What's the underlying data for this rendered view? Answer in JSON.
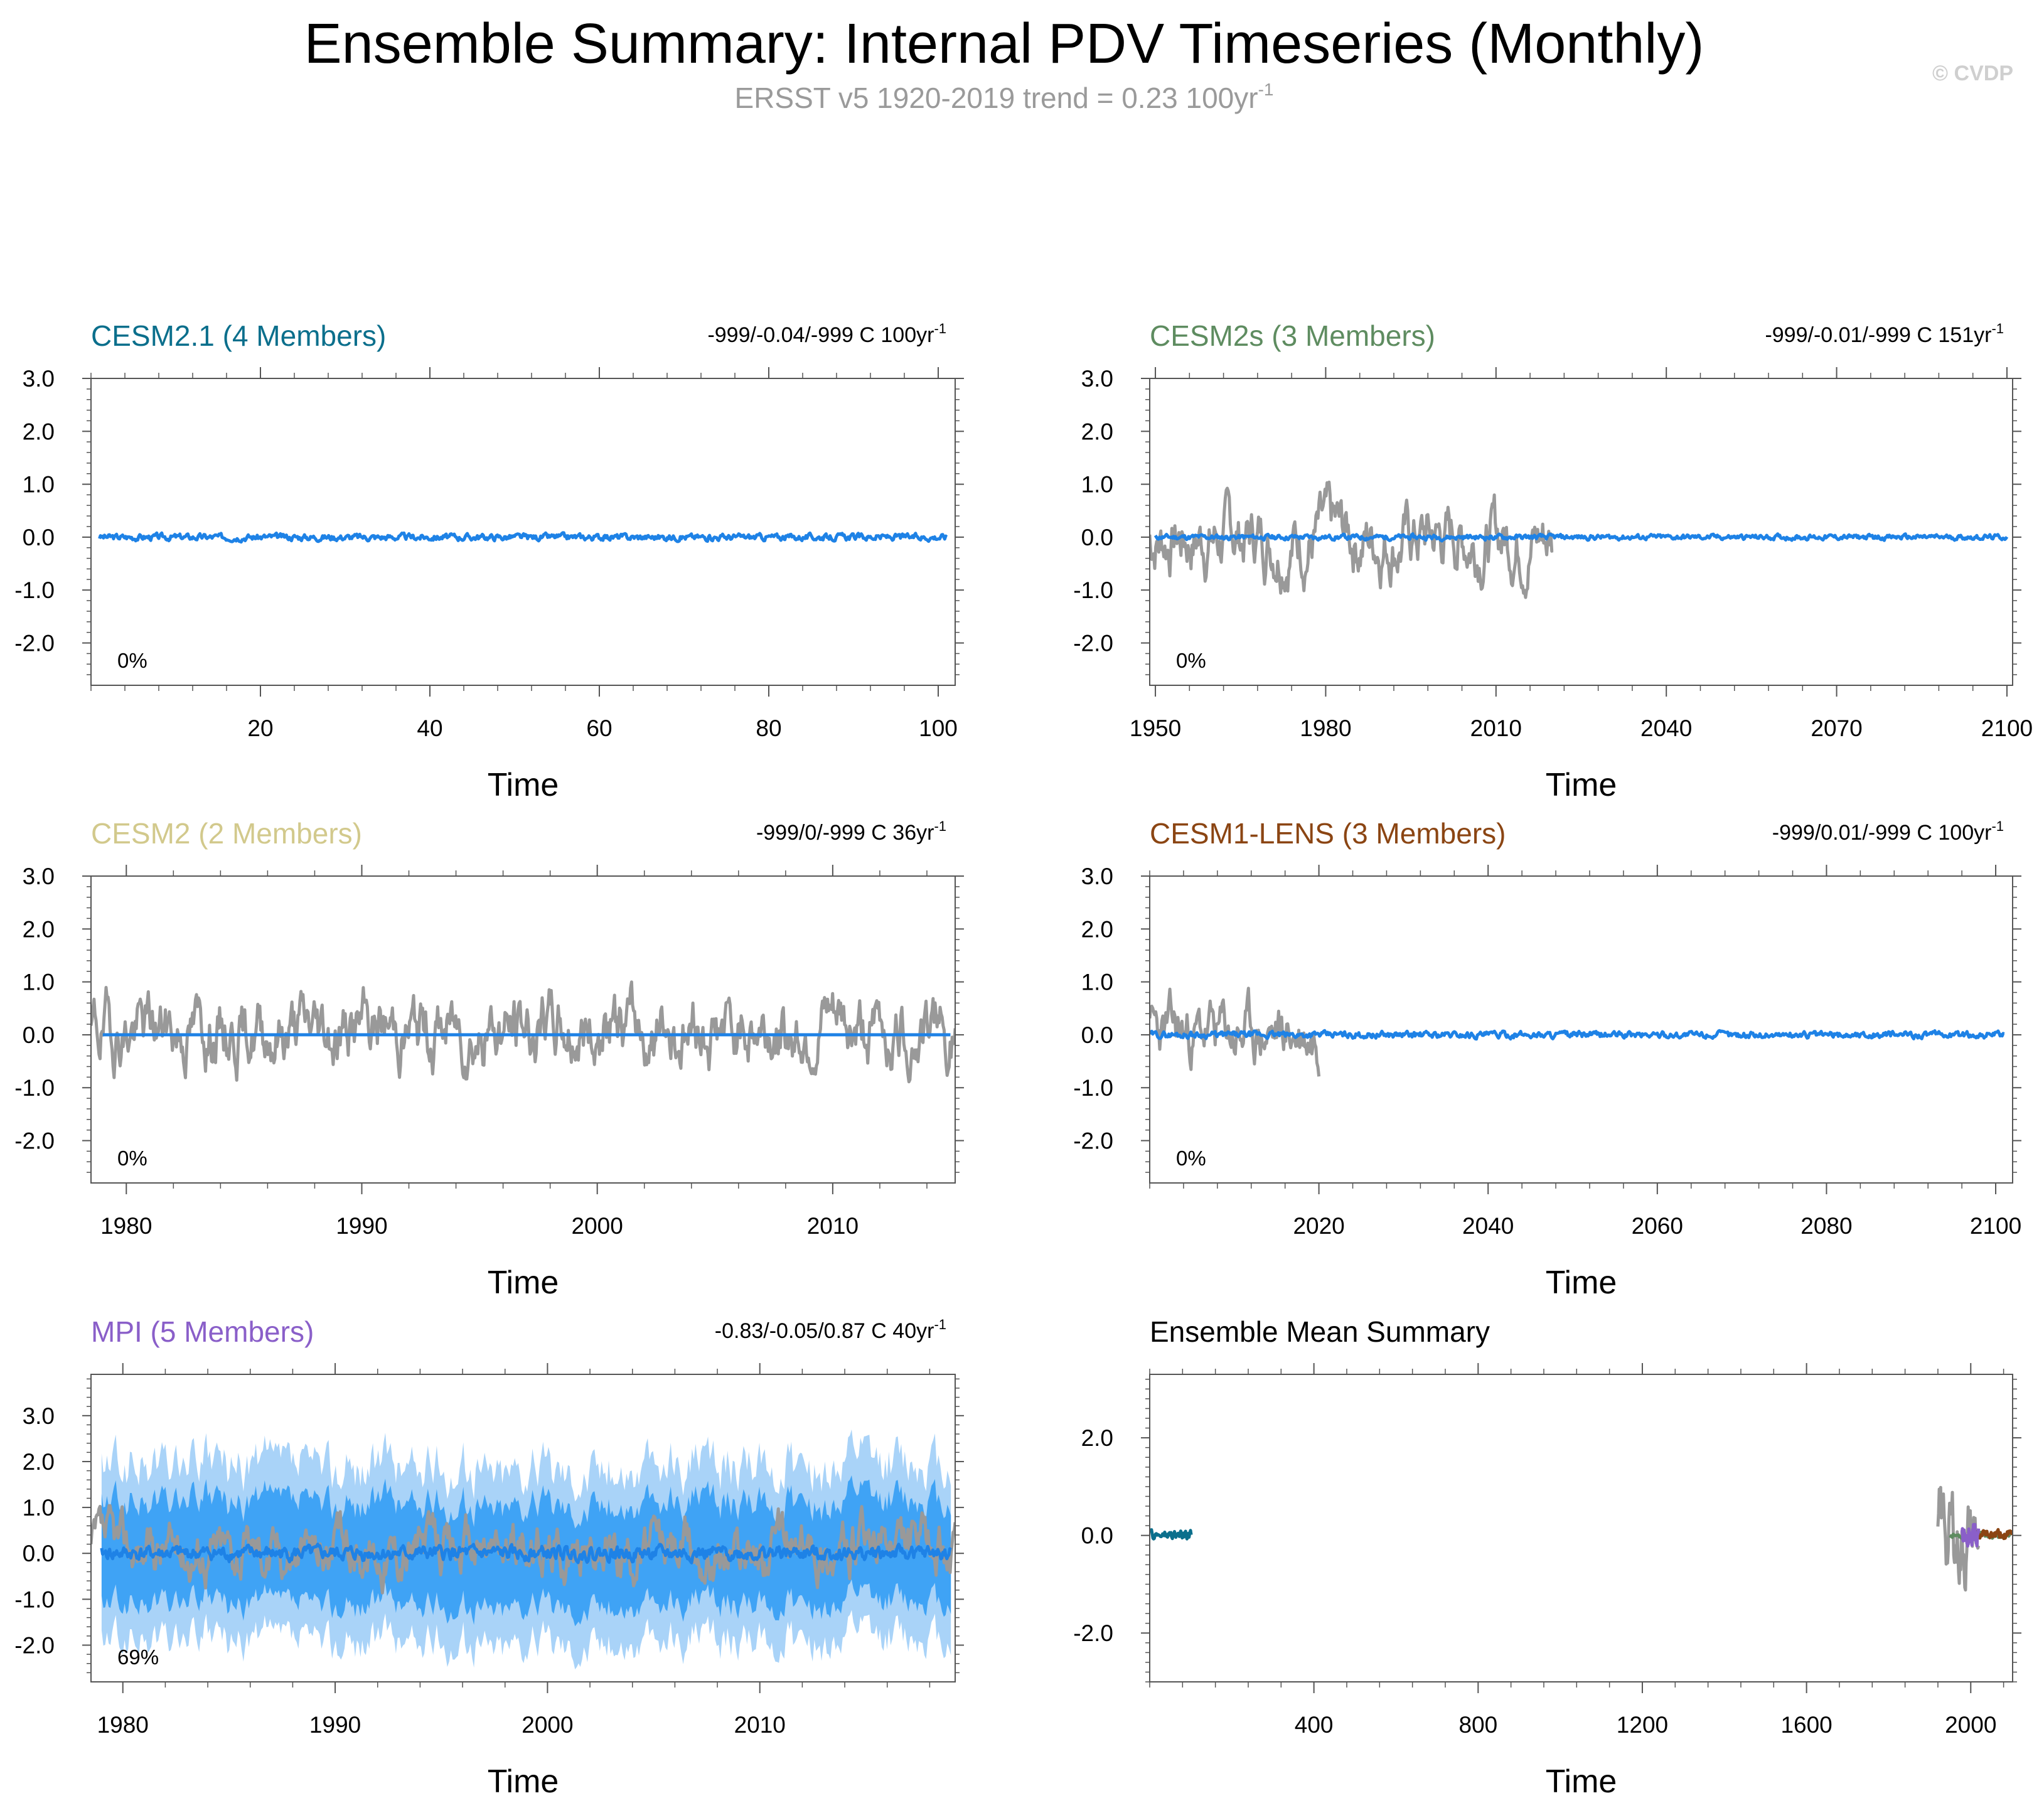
{
  "figure": {
    "title": "Ensemble Summary: Internal PDV Timeseries (Monthly)",
    "subtitle_main": "ERSST v5 1920-2019 trend = 0.23 100yr",
    "subtitle_sup": "-1",
    "credit": "© CVDP"
  },
  "colors": {
    "observed": "#999999",
    "ensemble_mean": "#1e82e6",
    "spread_inner": "#3fa3f5",
    "spread_outer": "#a9d3f8",
    "frame": "#555555"
  },
  "chart_data": [
    {
      "id": "cesm21",
      "type": "line",
      "title": "CESM2.1 (4 Members)",
      "title_color": "#0b6f8c",
      "stat": "-999/-0.04/-999 C 100yr",
      "stat_sup": "-1",
      "pct": "0%",
      "xlabel": "Time",
      "xlim": [
        0,
        102
      ],
      "ylim": [
        -2.8,
        3.0
      ],
      "xticks": [
        20,
        40,
        60,
        80,
        100
      ],
      "xtick_labels": [
        "20",
        "40",
        "60",
        "80",
        "100"
      ],
      "yticks": [
        -2,
        -1,
        0,
        1,
        2,
        3
      ],
      "ytick_labels": [
        "-2.0",
        "-1.0",
        "0.0",
        "1.0",
        "2.0",
        "3.0"
      ],
      "series": [
        {
          "name": "Ensemble Mean",
          "color": "#1e82e6",
          "x_range": [
            1,
            101
          ],
          "amplitude": 0.05,
          "seed": 3,
          "mean": 0.0
        }
      ]
    },
    {
      "id": "cesm2s",
      "type": "line",
      "title": "CESM2s (3 Members)",
      "title_color": "#5e8c60",
      "stat": "-999/-0.01/-999 C 151yr",
      "stat_sup": "-1",
      "pct": "0%",
      "xlabel": "Time",
      "xlim": [
        1949,
        2101
      ],
      "ylim": [
        -2.8,
        3.0
      ],
      "xticks": [
        1950,
        1980,
        2010,
        2040,
        2070,
        2100
      ],
      "xtick_labels": [
        "1950",
        "1980",
        "2010",
        "2040",
        "2070",
        "2100"
      ],
      "yticks": [
        -2,
        -1,
        0,
        1,
        2,
        3
      ],
      "ytick_labels": [
        "-2.0",
        "-1.0",
        "0.0",
        "1.0",
        "2.0",
        "3.0"
      ],
      "series": [
        {
          "name": "Observed",
          "color": "#999999",
          "x_range": [
            1949,
            2020
          ],
          "amplitude": 1.0,
          "seed": 7,
          "mean": 0.0
        },
        {
          "name": "Ensemble Mean",
          "color": "#1e82e6",
          "x_range": [
            1950,
            2100
          ],
          "amplitude": 0.04,
          "seed": 11,
          "mean": 0.0
        }
      ]
    },
    {
      "id": "cesm2",
      "type": "line",
      "title": "CESM2 (2 Members)",
      "title_color": "#d2c98c",
      "stat": "-999/0/-999 C 36yr",
      "stat_sup": "-1",
      "pct": "0%",
      "xlabel": "Time",
      "xlim": [
        1978.5,
        2015.2
      ],
      "ylim": [
        -2.8,
        3.0
      ],
      "xticks": [
        1980,
        1990,
        2000,
        2010
      ],
      "xtick_labels": [
        "1980",
        "1990",
        "2000",
        "2010"
      ],
      "yticks": [
        -2,
        -1,
        0,
        1,
        2,
        3
      ],
      "ytick_labels": [
        "-2.0",
        "-1.0",
        "0.0",
        "1.0",
        "2.0",
        "3.0"
      ],
      "series": [
        {
          "name": "Observed",
          "color": "#999999",
          "x_range": [
            1978.5,
            2015.2
          ],
          "amplitude": 1.0,
          "seed": 19,
          "mean": 0.1
        },
        {
          "name": "Ensemble Mean",
          "color": "#1e82e6",
          "x_range": [
            1979,
            2015
          ],
          "amplitude": 0.0,
          "seed": 1,
          "mean": 0.0
        }
      ]
    },
    {
      "id": "cesm1lens",
      "type": "line",
      "title": "CESM1-LENS (3 Members)",
      "title_color": "#8b4513",
      "stat": "-999/0.01/-999 C 100yr",
      "stat_sup": "-1",
      "pct": "0%",
      "xlabel": "Time",
      "xlim": [
        2000,
        2102
      ],
      "ylim": [
        -2.8,
        3.0
      ],
      "xticks": [
        2020,
        2040,
        2060,
        2080,
        2100
      ],
      "xtick_labels": [
        "2020",
        "2040",
        "2060",
        "2080",
        "2100"
      ],
      "yticks": [
        -2,
        -1,
        0,
        1,
        2,
        3
      ],
      "ytick_labels": [
        "-2.0",
        "-1.0",
        "0.0",
        "1.0",
        "2.0",
        "3.0"
      ],
      "series": [
        {
          "name": "Observed",
          "color": "#999999",
          "x_range": [
            2000,
            2020
          ],
          "amplitude": 0.9,
          "seed": 23,
          "mean": 0.0
        },
        {
          "name": "Ensemble Mean",
          "color": "#1e82e6",
          "x_range": [
            2000,
            2101
          ],
          "amplitude": 0.05,
          "seed": 29,
          "mean": 0.0
        }
      ]
    },
    {
      "id": "mpi",
      "type": "area",
      "title": "MPI (5 Members)",
      "title_color": "#8a5fc9",
      "stat": "-0.83/-0.05/0.87 C 40yr",
      "stat_sup": "-1",
      "pct": "69%",
      "xlabel": "Time",
      "xlim": [
        1978.5,
        2019.2
      ],
      "ylim": [
        -2.8,
        3.9
      ],
      "xticks": [
        1980,
        1990,
        2000,
        2010
      ],
      "xtick_labels": [
        "1980",
        "1990",
        "2000",
        "2010"
      ],
      "yticks": [
        -2,
        -1,
        0,
        1,
        2,
        3
      ],
      "ytick_labels": [
        "-2.0",
        "-1.0",
        "0.0",
        "1.0",
        "2.0",
        "3.0"
      ],
      "spread": {
        "x_range": [
          1979,
          2019
        ],
        "outer_halfwidth": 1.9,
        "inner_halfwidth": 1.1,
        "seed": 31
      },
      "series": [
        {
          "name": "Observed",
          "color": "#999999",
          "x_range": [
            1978.5,
            2019.2
          ],
          "amplitude": 0.9,
          "seed": 37,
          "mean": 0.1
        },
        {
          "name": "Ensemble Mean",
          "color": "#1e82e6",
          "x_range": [
            1979,
            2019
          ],
          "amplitude": 0.12,
          "seed": 41,
          "mean": 0.0
        }
      ]
    },
    {
      "id": "summary",
      "type": "line",
      "title": "Ensemble Mean Summary",
      "title_color": "#000000",
      "stat": "",
      "stat_sup": "",
      "pct": "",
      "xlabel": "Time",
      "xlim": [
        0,
        2102
      ],
      "ylim": [
        -3.0,
        3.3
      ],
      "xticks": [
        400,
        800,
        1200,
        1600,
        2000
      ],
      "xtick_labels": [
        "400",
        "800",
        "1200",
        "1600",
        "2000"
      ],
      "yticks": [
        -2,
        0,
        2
      ],
      "ytick_labels": [
        "-2.0",
        "0.0",
        "2.0"
      ],
      "series": [
        {
          "name": "Observed",
          "color": "#999999",
          "x_range": [
            1920,
            2019
          ],
          "amplitude": 1.5,
          "seed": 43,
          "mean": 0.0
        },
        {
          "name": "CESM2.1",
          "color": "#0b6f8c",
          "x_range": [
            1,
            101
          ],
          "amplitude": 0.08,
          "seed": 47,
          "mean": 0.0
        },
        {
          "name": "CESM2s",
          "color": "#5e8c60",
          "x_range": [
            1950,
            2100
          ],
          "amplitude": 0.05,
          "seed": 53,
          "mean": 0.0
        },
        {
          "name": "CESM2",
          "color": "#d2c98c",
          "x_range": [
            1979,
            2015
          ],
          "amplitude": 0.02,
          "seed": 59,
          "mean": 0.0
        },
        {
          "name": "CESM1-LENS",
          "color": "#8b4513",
          "x_range": [
            2000,
            2101
          ],
          "amplitude": 0.08,
          "seed": 61,
          "mean": 0.0
        },
        {
          "name": "MPI",
          "color": "#8a5fc9",
          "x_range": [
            1979,
            2019
          ],
          "amplitude": 0.15,
          "seed": 67,
          "mean": 0.0
        }
      ]
    }
  ]
}
